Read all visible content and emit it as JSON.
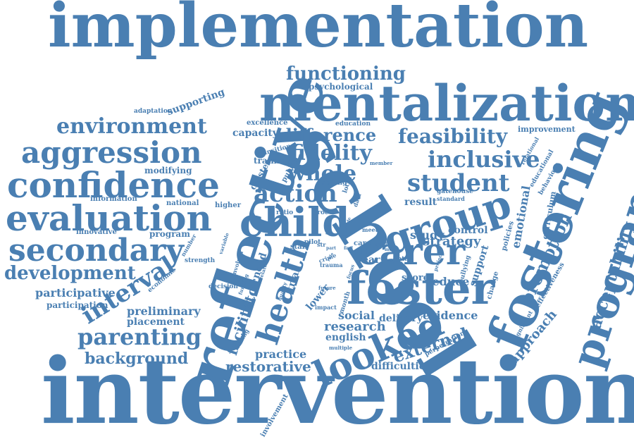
{
  "words": [
    {
      "text": "implementation",
      "color": "#4a7fb2"
    },
    {
      "text": "intervention",
      "color": "#4a7fb2"
    },
    {
      "text": "school",
      "color": "#4a7fb2"
    },
    {
      "text": "reflective",
      "color": "#4a7fb2"
    },
    {
      "text": "mentalization",
      "color": "#4a7fb2"
    },
    {
      "text": "fostering",
      "color": "#4a7fb2"
    },
    {
      "text": "programme",
      "color": "#4a7fb2"
    },
    {
      "text": "foster",
      "color": "#4a7fb2"
    },
    {
      "text": "carer",
      "color": "#4a7fb2"
    },
    {
      "text": "group",
      "color": "#4a7fb2"
    },
    {
      "text": "child",
      "color": "#4a7fb2"
    },
    {
      "text": "looked",
      "color": "#4a7fb2"
    },
    {
      "text": "health",
      "color": "#4a7fb2"
    },
    {
      "text": "confidence",
      "color": "#4a7fb2"
    },
    {
      "text": "evaluation",
      "color": "#4a7fb2"
    },
    {
      "text": "aggression",
      "color": "#4a7fb2"
    },
    {
      "text": "secondary",
      "color": "#4a7fb2"
    },
    {
      "text": "environment",
      "color": "#4a7fb2"
    },
    {
      "text": "development",
      "color": "#4a7fb2"
    },
    {
      "text": "functioning",
      "color": "#4a7fb2"
    },
    {
      "text": "feasibility",
      "color": "#4a7fb2"
    },
    {
      "text": "difference",
      "color": "#4a7fb2"
    },
    {
      "text": "fidelity",
      "color": "#4a7fb2"
    },
    {
      "text": "inclusive",
      "color": "#4a7fb2"
    },
    {
      "text": "student",
      "color": "#4a7fb2"
    },
    {
      "text": "whole",
      "color": "#4a7fb2"
    },
    {
      "text": "action",
      "color": "#4a7fb2"
    },
    {
      "text": "interval",
      "color": "#4a7fb2"
    },
    {
      "text": "parenting",
      "color": "#4a7fb2"
    },
    {
      "text": "background",
      "color": "#4a7fb2"
    },
    {
      "text": "restorative",
      "color": "#4a7fb2"
    },
    {
      "text": "external",
      "color": "#4a7fb2"
    },
    {
      "text": "promotion",
      "color": "#4a7fb2"
    },
    {
      "text": "acceptability",
      "color": "#4a7fb2"
    },
    {
      "text": "approach",
      "color": "#4a7fb2"
    },
    {
      "text": "facilitator",
      "color": "#4a7fb2"
    },
    {
      "text": "research",
      "color": "#4a7fb2"
    },
    {
      "text": "social",
      "color": "#4a7fb2"
    },
    {
      "text": "evidence",
      "color": "#4a7fb2"
    },
    {
      "text": "delivery",
      "color": "#4a7fb2"
    },
    {
      "text": "english",
      "color": "#4a7fb2"
    },
    {
      "text": "practice",
      "color": "#4a7fb2"
    },
    {
      "text": "difficulties",
      "color": "#4a7fb2"
    },
    {
      "text": "participative",
      "color": "#4a7fb2"
    },
    {
      "text": "participation",
      "color": "#4a7fb2"
    },
    {
      "text": "preliminary",
      "color": "#4a7fb2"
    },
    {
      "text": "placement",
      "color": "#4a7fb2"
    },
    {
      "text": "strategy",
      "color": "#4a7fb2"
    },
    {
      "text": "study",
      "color": "#4a7fb2"
    },
    {
      "text": "reduce",
      "color": "#4a7fb2"
    },
    {
      "text": "result",
      "color": "#4a7fb2"
    },
    {
      "text": "control",
      "color": "#4a7fb2"
    },
    {
      "text": "emotional",
      "color": "#4a7fb2"
    },
    {
      "text": "support",
      "color": "#4a7fb2"
    },
    {
      "text": "supporting",
      "color": "#4a7fb2"
    },
    {
      "text": "capacity",
      "color": "#4a7fb2"
    },
    {
      "text": "psychological",
      "color": "#4a7fb2"
    },
    {
      "text": "adaptation",
      "color": "#4a7fb2"
    },
    {
      "text": "modifying",
      "color": "#4a7fb2"
    },
    {
      "text": "information",
      "color": "#4a7fb2"
    },
    {
      "text": "national",
      "color": "#4a7fb2"
    },
    {
      "text": "innovative",
      "color": "#4a7fb2"
    },
    {
      "text": "program",
      "color": "#4a7fb2"
    },
    {
      "text": "strength",
      "color": "#4a7fb2"
    },
    {
      "text": "economic",
      "color": "#4a7fb2"
    },
    {
      "text": "decision",
      "color": "#4a7fb2"
    },
    {
      "text": "need",
      "color": "#4a7fb2"
    },
    {
      "text": "trial",
      "color": "#4a7fb2"
    },
    {
      "text": "higher",
      "color": "#4a7fb2"
    },
    {
      "text": "cluster",
      "color": "#4a7fb2"
    },
    {
      "text": "training",
      "color": "#4a7fb2"
    },
    {
      "text": "public",
      "color": "#4a7fb2"
    },
    {
      "text": "excellence",
      "color": "#4a7fb2"
    },
    {
      "text": "education",
      "color": "#4a7fb2"
    },
    {
      "text": "transition",
      "color": "#4a7fb2"
    },
    {
      "text": "improvement",
      "color": "#4a7fb2"
    },
    {
      "text": "relational",
      "color": "#4a7fb2"
    },
    {
      "text": "educational",
      "color": "#4a7fb2"
    },
    {
      "text": "behaviour",
      "color": "#4a7fb2"
    },
    {
      "text": "gatehouse",
      "color": "#4a7fb2"
    },
    {
      "text": "standard",
      "color": "#4a7fb2"
    },
    {
      "text": "curriculum",
      "color": "#4a7fb2"
    },
    {
      "text": "policies",
      "color": "#4a7fb2"
    },
    {
      "text": "effectiveness",
      "color": "#4a7fb2"
    },
    {
      "text": "change",
      "color": "#4a7fb2"
    },
    {
      "text": "bullying",
      "color": "#4a7fb2"
    },
    {
      "text": "perpetration",
      "color": "#4a7fb2"
    },
    {
      "text": "significant",
      "color": "#4a7fb2"
    },
    {
      "text": "year",
      "color": "#4a7fb2"
    },
    {
      "text": "score",
      "color": "#4a7fb2"
    },
    {
      "text": "total",
      "color": "#4a7fb2"
    },
    {
      "text": "lower",
      "color": "#4a7fb2"
    },
    {
      "text": "month",
      "color": "#4a7fb2"
    },
    {
      "text": "impact",
      "color": "#4a7fb2"
    },
    {
      "text": "future",
      "color": "#4a7fb2"
    },
    {
      "text": "trauma",
      "color": "#4a7fb2"
    },
    {
      "text": "crime",
      "color": "#4a7fb2"
    },
    {
      "text": "care",
      "color": "#4a7fb2"
    },
    {
      "text": "meet",
      "color": "#4a7fb2"
    },
    {
      "text": "odd",
      "color": "#4a7fb2"
    },
    {
      "text": "staff",
      "color": "#4a7fb2"
    },
    {
      "text": "pilot",
      "color": "#4a7fb2"
    },
    {
      "text": "ratio",
      "color": "#4a7fb2"
    },
    {
      "text": "proc",
      "color": "#4a7fb2"
    },
    {
      "text": "setting",
      "color": "#4a7fb2"
    },
    {
      "text": "local",
      "color": "#4a7fb2"
    },
    {
      "text": "data",
      "color": "#4a7fb2"
    },
    {
      "text": "member",
      "color": "#4a7fb2"
    },
    {
      "text": "involvement",
      "color": "#4a7fb2"
    },
    {
      "text": "leading",
      "color": "#4a7fb2"
    },
    {
      "text": "involved",
      "color": "#4a7fb2"
    },
    {
      "text": "funding",
      "color": "#4a7fb2"
    },
    {
      "text": "related",
      "color": "#4a7fb2"
    },
    {
      "text": "quality",
      "color": "#4a7fb2"
    },
    {
      "text": "number",
      "color": "#4a7fb2"
    },
    {
      "text": "variable",
      "color": "#4a7fb2"
    },
    {
      "text": "multiple",
      "color": "#4a7fb2"
    },
    {
      "text": "project",
      "color": "#4a7fb2"
    },
    {
      "text": "str",
      "color": "#4a7fb2"
    },
    {
      "text": "focus",
      "color": "#4a7fb2"
    },
    {
      "text": "pupil",
      "color": "#4a7fb2"
    },
    {
      "text": "more",
      "color": "#4a7fb2"
    },
    {
      "text": "wide",
      "color": "#4a7fb2"
    },
    {
      "text": "find",
      "color": "#4a7fb2"
    },
    {
      "text": "role",
      "color": "#4a7fb2"
    },
    {
      "text": "part",
      "color": "#4a7fb2"
    },
    {
      "text": "scale",
      "color": "#4a7fb2"
    }
  ]
}
